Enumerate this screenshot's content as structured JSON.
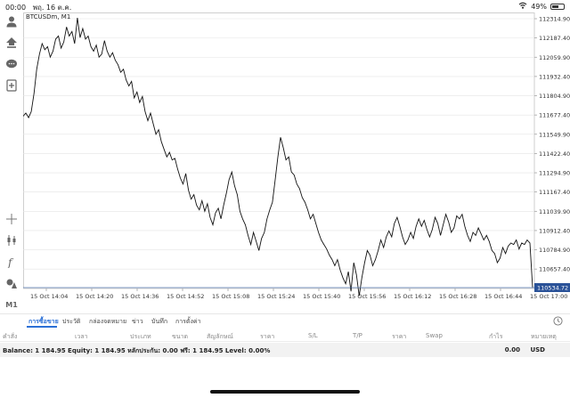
{
  "status_bar": {
    "time": "00:00",
    "date": "พฤ. 16 ต.ค.",
    "battery_percent": "49%",
    "battery_level": 0.49
  },
  "left_toolbar": {
    "icons": [
      "person-icon",
      "share-icon",
      "chat-icon",
      "add-document-icon",
      "crosshair-icon",
      "candlestick-icon",
      "function-icon",
      "objects-icon"
    ],
    "timeframe_label": "M1"
  },
  "chart": {
    "symbol_label": "BTCUSDm, M1",
    "current_price_label": "110534.72",
    "colors": {
      "line": "#111111",
      "grid": "#e4e4e4",
      "price_line": "#5b7fb8",
      "price_tag": "#2a5298"
    }
  },
  "chart_data": {
    "type": "line",
    "title": "BTCUSDm, M1",
    "y_ticks": [
      "112314.90",
      "112187.40",
      "112059.90",
      "111932.40",
      "111804.90",
      "111677.40",
      "111549.90",
      "111422.40",
      "111294.90",
      "111167.40",
      "111039.90",
      "110912.40",
      "110784.90",
      "110657.40"
    ],
    "ylim": [
      110534.72,
      112314.9
    ],
    "x_ticks": [
      "15 Oct 14:04",
      "15 Oct 14:20",
      "15 Oct 14:36",
      "15 Oct 14:52",
      "15 Oct 15:08",
      "15 Oct 15:24",
      "15 Oct 15:40",
      "15 Oct 15:56",
      "15 Oct 16:12",
      "15 Oct 16:28",
      "15 Oct 16:44",
      "15 Oct 17:00"
    ],
    "current_price": 110534.72,
    "grid": true,
    "series": [
      {
        "values": [
          111670,
          111690,
          111660,
          111700,
          111820,
          111980,
          112080,
          112150,
          112110,
          112130,
          112060,
          112100,
          112180,
          112200,
          112120,
          112160,
          112260,
          112200,
          112230,
          112150,
          112320,
          112190,
          112250,
          112180,
          112200,
          112130,
          112100,
          112140,
          112060,
          112080,
          112170,
          112100,
          112060,
          112090,
          112040,
          112010,
          111960,
          111980,
          111910,
          111870,
          111900,
          111790,
          111830,
          111760,
          111800,
          111700,
          111640,
          111690,
          111620,
          111550,
          111580,
          111500,
          111450,
          111400,
          111430,
          111380,
          111390,
          111320,
          111260,
          111220,
          111290,
          111180,
          111120,
          111150,
          111080,
          111050,
          111110,
          111040,
          111090,
          111000,
          110950,
          111030,
          111060,
          110990,
          111080,
          111160,
          111250,
          111300,
          111210,
          111150,
          111040,
          110990,
          110950,
          110880,
          110820,
          110900,
          110840,
          110780,
          110860,
          110900,
          110990,
          111050,
          111100,
          111250,
          111400,
          111530,
          111460,
          111380,
          111400,
          111300,
          111280,
          111220,
          111190,
          111130,
          111100,
          111050,
          110990,
          111020,
          110960,
          110900,
          110850,
          110820,
          110790,
          110750,
          110720,
          110680,
          110720,
          110650,
          110600,
          110560,
          110640,
          110510,
          110700,
          110620,
          110480,
          110600,
          110700,
          110780,
          110750,
          110680,
          110720,
          110780,
          110850,
          110800,
          110870,
          110910,
          110870,
          110960,
          111000,
          110940,
          110870,
          110820,
          110850,
          110900,
          110860,
          110940,
          110990,
          110940,
          110980,
          110920,
          110870,
          110920,
          111000,
          110960,
          110880,
          110950,
          111020,
          110970,
          110900,
          110930,
          111010,
          110990,
          111020,
          110940,
          110880,
          110840,
          110900,
          110880,
          110930,
          110890,
          110850,
          110880,
          110840,
          110780,
          110760,
          110700,
          110730,
          110800,
          110760,
          110810,
          110830,
          110820,
          110850,
          110790,
          110830,
          110820,
          110850,
          110830,
          110534
        ]
      }
    ]
  },
  "tabs": [
    {
      "label": "การซื้อขาย",
      "active": true
    },
    {
      "label": "ประวัติ",
      "active": false
    },
    {
      "label": "กล่องจดหมาย",
      "active": false
    },
    {
      "label": "ข่าว",
      "active": false
    },
    {
      "label": "บันทึก",
      "active": false
    },
    {
      "label": "การตั้งค่า",
      "active": false
    }
  ],
  "columns": [
    "คำสั่ง",
    "เวลา",
    "ประเภท",
    "ขนาด",
    "สัญลักษณ์",
    "ราคา",
    "S/L",
    "T/P",
    "ราคา",
    "Swap",
    "กำไร",
    "หมายเหตุ"
  ],
  "balance_row": {
    "text": "Balance: 1 184.95  Equity: 1 184.95  หลักประกัน: 0.00  ฟรี: 1 184.95  Level: 0.00%",
    "profit": "0.00",
    "currency": "USD"
  }
}
